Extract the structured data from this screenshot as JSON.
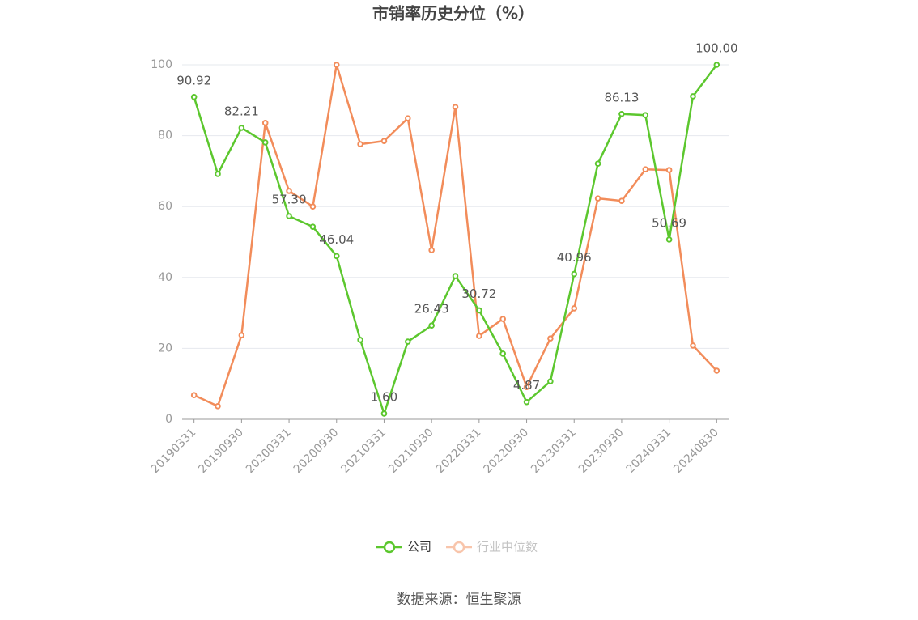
{
  "chart_data": {
    "type": "line",
    "title": "市销率历史分位（%）",
    "categories": [
      "20190331",
      null,
      "20190930",
      null,
      "20200331",
      null,
      "20200930",
      null,
      "20210331",
      null,
      "20210930",
      null,
      "20220331",
      null,
      "20220930",
      null,
      "20230331",
      null,
      "20230930",
      null,
      "20240331",
      null,
      "20240830"
    ],
    "series": [
      {
        "name": "公司",
        "color": "#5cc72e",
        "values": [
          90.92,
          69.2,
          82.21,
          78.1,
          57.3,
          54.3,
          46.04,
          22.4,
          1.6,
          21.9,
          26.43,
          40.4,
          30.72,
          18.5,
          4.87,
          10.7,
          40.96,
          72.1,
          86.13,
          85.8,
          50.69,
          91.1,
          100
        ],
        "value_labels": [
          "90.92",
          null,
          "82.21",
          null,
          "57.30",
          null,
          "46.04",
          null,
          "1.60",
          null,
          "26.43",
          null,
          "30.72",
          null,
          "4.87",
          null,
          "40.96",
          null,
          "86.13",
          null,
          "50.69",
          null,
          "100.00"
        ]
      },
      {
        "name": "行业中位数",
        "color": "#f28c5a",
        "values": [
          6.8,
          3.7,
          23.7,
          83.6,
          64.4,
          60.0,
          100,
          77.6,
          78.5,
          84.9,
          47.7,
          88.1,
          23.5,
          28.3,
          9.1,
          22.8,
          31.3,
          62.3,
          61.6,
          70.5,
          70.3,
          20.8,
          13.7
        ]
      }
    ],
    "ylim": [
      0,
      100
    ],
    "yticks": [
      0,
      20,
      40,
      60,
      80,
      100
    ],
    "grid": true,
    "legend": "bottom",
    "source": "数据来源：恒生聚源"
  }
}
